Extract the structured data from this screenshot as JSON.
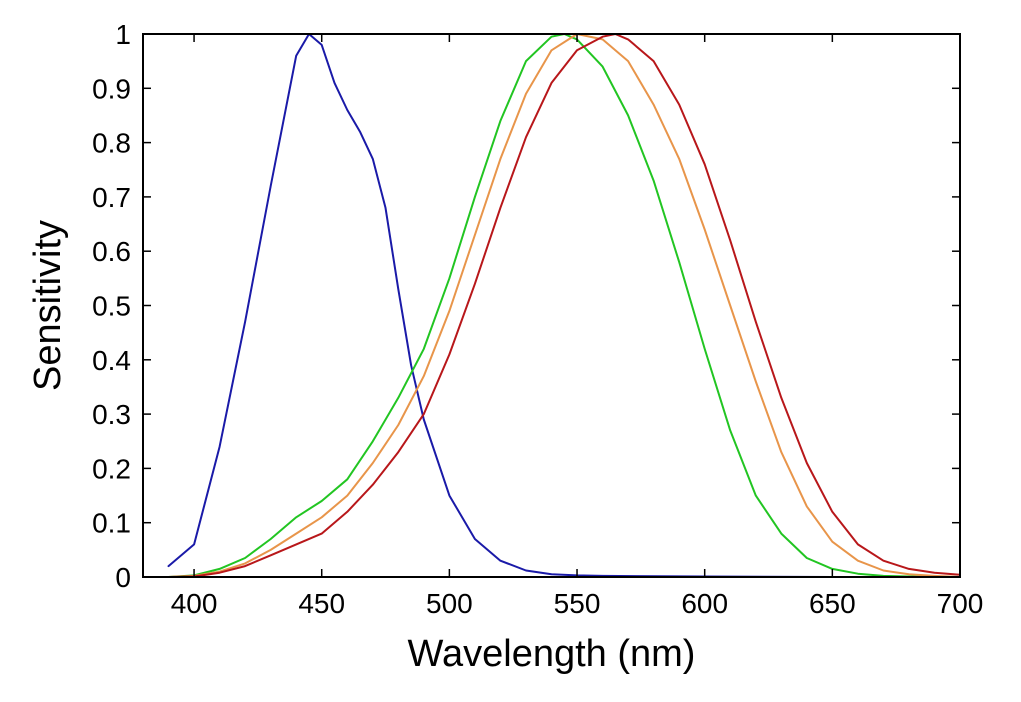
{
  "chart_data": {
    "type": "line",
    "title": "",
    "xlabel": "Wavelength (nm)",
    "ylabel": "Sensitivity",
    "xlim": [
      380,
      700
    ],
    "ylim": [
      0,
      1
    ],
    "xticks": [
      400,
      450,
      500,
      550,
      600,
      650,
      700
    ],
    "yticks": [
      0,
      0.1,
      0.2,
      0.3,
      0.4,
      0.5,
      0.6,
      0.7,
      0.8,
      0.9,
      1
    ],
    "ytick_labels": [
      "0",
      "0.1",
      "0.2",
      "0.3",
      "0.4",
      "0.5",
      "0.6",
      "0.7",
      "0.8",
      "0.9",
      "1"
    ],
    "grid": false,
    "legend": "none",
    "series": [
      {
        "color": "#1a1aa8",
        "x": [
          390,
          400,
          410,
          420,
          430,
          440,
          445,
          450,
          455,
          460,
          465,
          470,
          475,
          480,
          485,
          490,
          500,
          510,
          520,
          530,
          540,
          550,
          560,
          600,
          650,
          700
        ],
        "y": [
          0.02,
          0.06,
          0.24,
          0.47,
          0.72,
          0.96,
          1.0,
          0.98,
          0.91,
          0.86,
          0.82,
          0.77,
          0.68,
          0.53,
          0.39,
          0.29,
          0.15,
          0.07,
          0.03,
          0.012,
          0.005,
          0.003,
          0.002,
          0.001,
          0.0,
          0.0
        ]
      },
      {
        "color": "#22c522",
        "x": [
          390,
          400,
          410,
          420,
          430,
          440,
          450,
          460,
          470,
          480,
          490,
          500,
          510,
          520,
          530,
          540,
          545,
          550,
          560,
          570,
          580,
          590,
          600,
          610,
          620,
          630,
          640,
          650,
          660,
          670,
          680,
          690,
          700
        ],
        "y": [
          0.0,
          0.003,
          0.015,
          0.035,
          0.07,
          0.11,
          0.14,
          0.18,
          0.25,
          0.33,
          0.42,
          0.55,
          0.7,
          0.84,
          0.95,
          0.995,
          1.0,
          0.99,
          0.94,
          0.85,
          0.73,
          0.58,
          0.42,
          0.27,
          0.15,
          0.08,
          0.035,
          0.015,
          0.006,
          0.002,
          0.001,
          0.0,
          0.0
        ]
      },
      {
        "color": "#e8954a",
        "x": [
          390,
          400,
          410,
          420,
          430,
          440,
          450,
          460,
          470,
          480,
          490,
          500,
          510,
          520,
          530,
          540,
          550,
          560,
          570,
          580,
          590,
          600,
          610,
          620,
          630,
          640,
          650,
          660,
          670,
          680,
          690,
          700
        ],
        "y": [
          0.0,
          0.002,
          0.01,
          0.025,
          0.05,
          0.08,
          0.11,
          0.15,
          0.21,
          0.28,
          0.37,
          0.49,
          0.63,
          0.77,
          0.89,
          0.97,
          1.0,
          0.99,
          0.95,
          0.87,
          0.77,
          0.64,
          0.5,
          0.36,
          0.23,
          0.13,
          0.065,
          0.03,
          0.012,
          0.005,
          0.002,
          0.0
        ]
      },
      {
        "color": "#b8171a",
        "x": [
          390,
          400,
          410,
          420,
          430,
          440,
          450,
          460,
          470,
          480,
          490,
          500,
          510,
          520,
          530,
          540,
          550,
          560,
          565,
          570,
          580,
          590,
          600,
          610,
          620,
          630,
          640,
          650,
          660,
          670,
          680,
          690,
          700
        ],
        "y": [
          0.0,
          0.001,
          0.008,
          0.02,
          0.04,
          0.06,
          0.08,
          0.12,
          0.17,
          0.23,
          0.3,
          0.41,
          0.54,
          0.68,
          0.81,
          0.91,
          0.97,
          0.995,
          1.0,
          0.99,
          0.95,
          0.87,
          0.76,
          0.62,
          0.47,
          0.33,
          0.21,
          0.12,
          0.06,
          0.03,
          0.015,
          0.008,
          0.004
        ]
      }
    ]
  }
}
